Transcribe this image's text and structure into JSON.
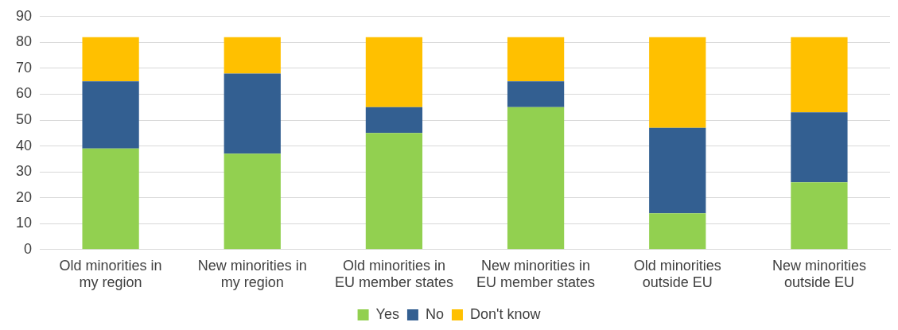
{
  "chart_data": {
    "type": "bar",
    "stacked": true,
    "categories": [
      "Old minorities in my region",
      "New minorities in my region",
      "Old minorities in EU member states",
      "New minorities in EU member states",
      "Old minorities outside EU",
      "New minorities outside EU"
    ],
    "series": [
      {
        "name": "Yes",
        "color": "#92d050",
        "values": [
          39,
          37,
          45,
          55,
          14,
          26
        ]
      },
      {
        "name": "No",
        "color": "#335f91",
        "values": [
          26,
          31,
          10,
          10,
          33,
          27
        ]
      },
      {
        "name": "Don't know",
        "color": "#ffc000",
        "values": [
          17,
          14,
          27,
          17,
          35,
          29
        ]
      }
    ],
    "ylim": [
      0,
      90
    ],
    "yticks": [
      0,
      10,
      20,
      30,
      40,
      50,
      60,
      70,
      80,
      90
    ],
    "grid": "y",
    "legend": "bottom"
  }
}
